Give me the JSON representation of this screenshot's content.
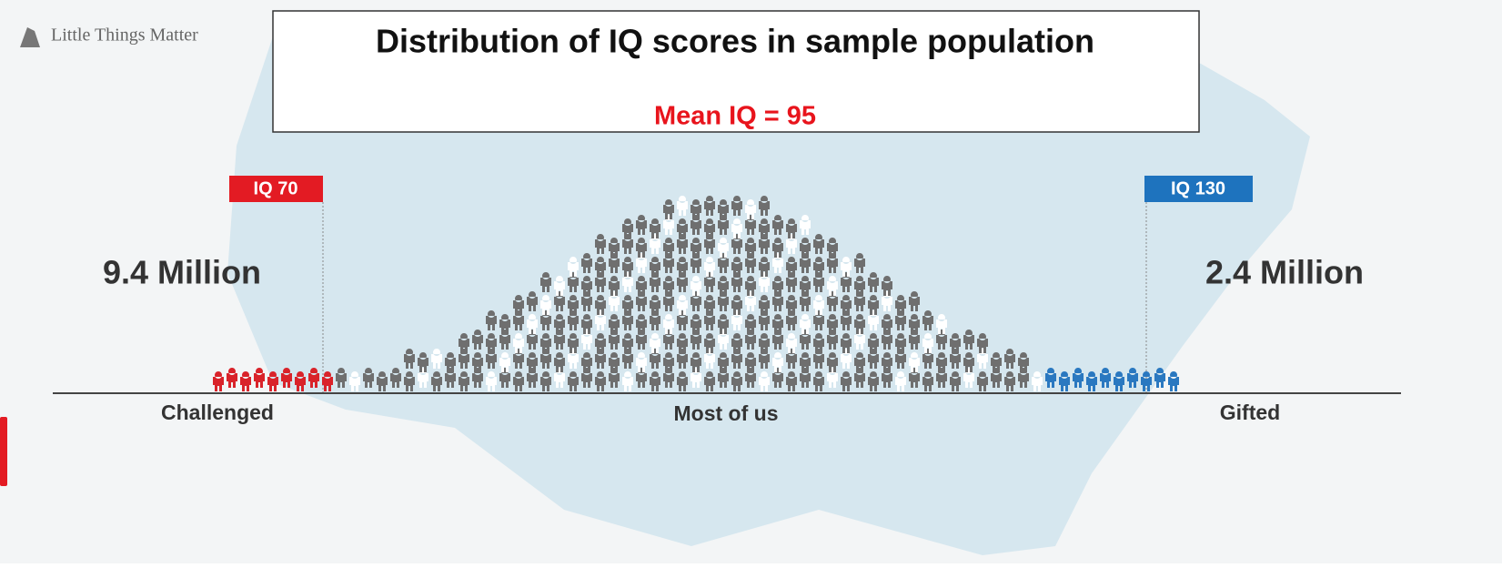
{
  "logo": "Little Things Matter",
  "title": "Distribution of IQ scores in sample population",
  "subtitle": "Mean IQ = 95",
  "left_marker": {
    "label": "IQ 70",
    "count": "9.4 Million"
  },
  "right_marker": {
    "label": "IQ 130",
    "count": "2.4 Million"
  },
  "axis_labels": {
    "left": "Challenged",
    "center": "Most of us",
    "right": "Gifted"
  }
}
